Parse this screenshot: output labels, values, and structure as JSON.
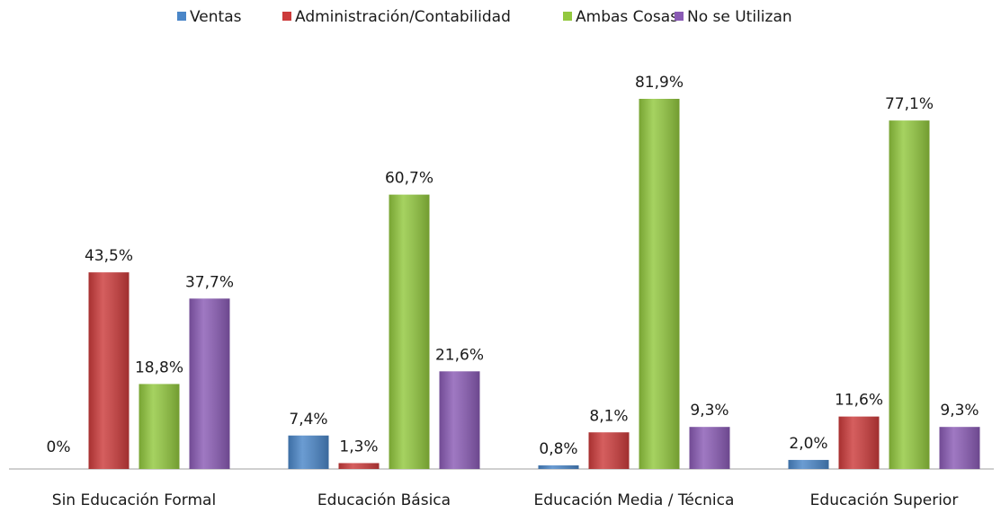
{
  "chart_data": {
    "type": "bar",
    "categories": [
      "Sin Educación Formal",
      "Educación Básica",
      "Educación Media / Técnica",
      "Educación Superior"
    ],
    "series": [
      {
        "name": "Ventas",
        "color": "#4a86c8",
        "values": [
          0,
          7.4,
          0.8,
          2.0
        ],
        "value_labels": [
          "0%",
          "7,4%",
          "0,8%",
          "2,0%"
        ]
      },
      {
        "name": "Administración/Contabilidad",
        "color": "#cc3b3b",
        "values": [
          43.5,
          1.3,
          8.1,
          11.6
        ],
        "value_labels": [
          "43,5%",
          "1,3%",
          "8,1%",
          "11,6%"
        ]
      },
      {
        "name": "Ambas Cosas",
        "color": "#92c83e",
        "values": [
          18.8,
          60.7,
          81.9,
          77.1
        ],
        "value_labels": [
          "18,8%",
          "60,7%",
          "81,9%",
          "77,1%"
        ]
      },
      {
        "name": "No se Utilizan",
        "color": "#8a5bb5",
        "values": [
          37.7,
          21.6,
          9.3,
          9.3
        ],
        "value_labels": [
          "37,7%",
          "21,6%",
          "9,3%",
          "9,3%"
        ]
      }
    ],
    "legend": "top"
  }
}
